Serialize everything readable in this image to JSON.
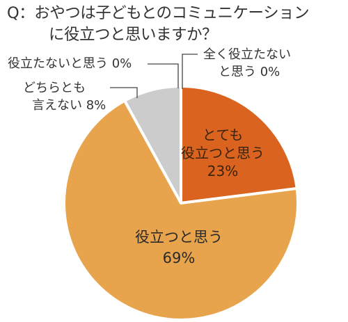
{
  "title": {
    "line1": "Q：おやつは子どもとのコミュニケーション",
    "line2": "に役立つと思いますか？"
  },
  "chart_data": {
    "type": "pie",
    "title": "Q：おやつは子どもとのコミュニケーションに役立つと思いますか？",
    "slices": [
      {
        "label": "とても役立つと思う",
        "value": 23,
        "color": "#D9631F"
      },
      {
        "label": "役立つと思う",
        "value": 69,
        "color": "#E8A44C"
      },
      {
        "label": "どちらとも言えない",
        "value": 8,
        "color": "#CCCCCC"
      },
      {
        "label": "役立たないと思う",
        "value": 0,
        "color": "#BBBBBB"
      },
      {
        "label": "全く役立たない",
        "value": 0,
        "color": "#AAAAAA"
      }
    ],
    "labels": {
      "totemo": {
        "line1": "とても",
        "line2": "役立つと思う",
        "line3": "23%"
      },
      "yakudatsu": {
        "line1": "役立つと思う",
        "line2": "69%"
      },
      "dochira": {
        "line1": "どちらとも",
        "line2": "言えない 8%"
      },
      "yakudatanai": {
        "text": "役立たないと思う 0%"
      },
      "mattaku": {
        "line1": "全く役立たない",
        "line2": "と思う 0%"
      }
    }
  }
}
